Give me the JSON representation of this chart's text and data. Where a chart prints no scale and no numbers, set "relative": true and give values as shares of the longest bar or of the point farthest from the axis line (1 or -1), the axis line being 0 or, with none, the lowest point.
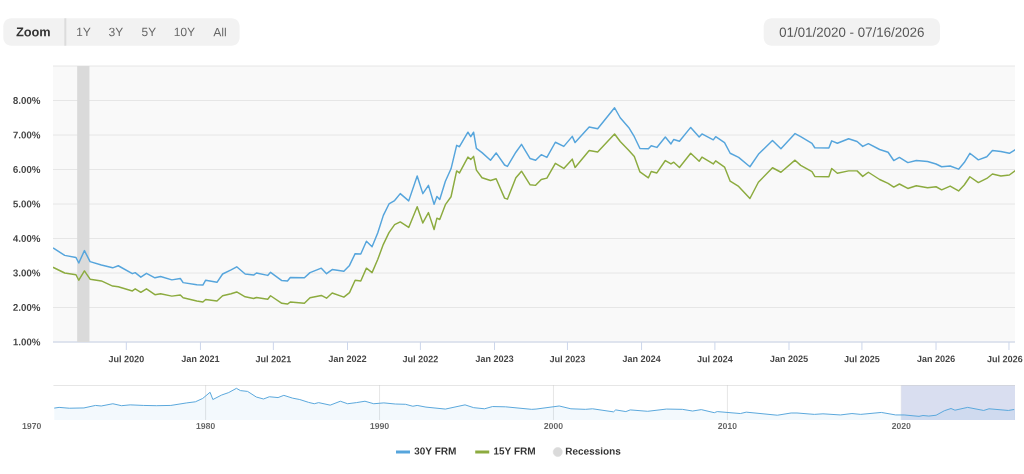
{
  "chart_data": [
    {
      "type": "line",
      "annotations": [
        "Zoom",
        "1Y",
        "3Y",
        "5Y",
        "10Y",
        "All",
        "01/01/2020 - 07/16/2026"
      ],
      "x": [
        "2020-01-02",
        "2020-01-30",
        "2020-02-27",
        "2020-03-05",
        "2020-03-19",
        "2020-04-02",
        "2020-04-30",
        "2020-05-28",
        "2020-06-11",
        "2020-07-16",
        "2020-07-23",
        "2020-08-06",
        "2020-08-20",
        "2020-09-10",
        "2020-09-24",
        "2020-10-22",
        "2020-11-12",
        "2020-11-19",
        "2020-12-23",
        "2021-01-07",
        "2021-01-14",
        "2021-02-11",
        "2021-02-25",
        "2021-03-18",
        "2021-04-01",
        "2021-04-22",
        "2021-05-13",
        "2021-05-20",
        "2021-06-17",
        "2021-06-24",
        "2021-07-22",
        "2021-08-05",
        "2021-08-12",
        "2021-09-16",
        "2021-09-30",
        "2021-10-28",
        "2021-11-10",
        "2021-11-24",
        "2021-12-23",
        "2022-01-06",
        "2022-01-20",
        "2022-02-03",
        "2022-02-17",
        "2022-03-03",
        "2022-03-17",
        "2022-03-31",
        "2022-04-14",
        "2022-04-28",
        "2022-05-12",
        "2022-06-02",
        "2022-06-23",
        "2022-07-07",
        "2022-07-21",
        "2022-08-04",
        "2022-08-11",
        "2022-08-18",
        "2022-09-01",
        "2022-09-15",
        "2022-09-29",
        "2022-10-06",
        "2022-10-27",
        "2022-11-03",
        "2022-11-10",
        "2022-11-17",
        "2022-12-01",
        "2022-12-22",
        "2023-01-05",
        "2023-01-26",
        "2023-02-02",
        "2023-02-23",
        "2023-03-09",
        "2023-03-30",
        "2023-04-13",
        "2023-04-27",
        "2023-05-11",
        "2023-06-01",
        "2023-06-22",
        "2023-07-13",
        "2023-07-20",
        "2023-08-24",
        "2023-09-14",
        "2023-10-26",
        "2023-11-09",
        "2023-11-30",
        "2023-12-14",
        "2023-12-28",
        "2024-01-18",
        "2024-01-25",
        "2024-02-08",
        "2024-02-29",
        "2024-03-14",
        "2024-03-21",
        "2024-04-04",
        "2024-05-02",
        "2024-05-23",
        "2024-05-30",
        "2024-06-27",
        "2024-07-03",
        "2024-07-25",
        "2024-08-08",
        "2024-08-29",
        "2024-09-26",
        "2024-10-17",
        "2024-11-21",
        "2024-12-12",
        "2025-01-16",
        "2025-01-30",
        "2025-02-27",
        "2025-03-06",
        "2025-04-10",
        "2025-04-17",
        "2025-05-01",
        "2025-05-29",
        "2025-06-19",
        "2025-07-03",
        "2025-07-17",
        "2025-08-14",
        "2025-09-04",
        "2025-09-18",
        "2025-10-02",
        "2025-10-23",
        "2025-11-13",
        "2025-12-11",
        "2026-01-01",
        "2026-01-15",
        "2026-02-05",
        "2026-02-26",
        "2026-03-12",
        "2026-03-26",
        "2026-04-16",
        "2026-05-07",
        "2026-05-21",
        "2026-06-11",
        "2026-07-02",
        "2026-07-16"
      ],
      "series": [
        {
          "name": "30Y FRM",
          "color": "#56a5dc",
          "values": [
            3.72,
            3.51,
            3.45,
            3.29,
            3.65,
            3.33,
            3.23,
            3.15,
            3.21,
            2.98,
            3.01,
            2.88,
            2.99,
            2.86,
            2.9,
            2.8,
            2.84,
            2.72,
            2.66,
            2.65,
            2.79,
            2.73,
            2.97,
            3.09,
            3.18,
            2.97,
            2.94,
            3.0,
            2.93,
            3.02,
            2.78,
            2.77,
            2.87,
            2.86,
            3.01,
            3.14,
            2.98,
            3.1,
            3.05,
            3.22,
            3.56,
            3.55,
            3.92,
            3.76,
            4.16,
            4.67,
            5.0,
            5.1,
            5.3,
            5.09,
            5.81,
            5.3,
            5.54,
            4.99,
            5.22,
            5.13,
            5.66,
            6.02,
            6.7,
            6.66,
            7.08,
            6.95,
            7.08,
            6.61,
            6.49,
            6.27,
            6.48,
            6.13,
            6.09,
            6.5,
            6.73,
            6.32,
            6.27,
            6.43,
            6.35,
            6.79,
            6.67,
            6.96,
            6.78,
            7.23,
            7.18,
            7.79,
            7.5,
            7.22,
            6.95,
            6.61,
            6.6,
            6.69,
            6.64,
            6.94,
            6.74,
            6.87,
            6.82,
            7.22,
            6.94,
            7.03,
            6.86,
            6.95,
            6.78,
            6.47,
            6.35,
            6.08,
            6.44,
            6.84,
            6.6,
            7.04,
            6.95,
            6.76,
            6.63,
            6.62,
            6.83,
            6.76,
            6.89,
            6.81,
            6.67,
            6.75,
            6.58,
            6.5,
            6.26,
            6.35,
            6.2,
            6.26,
            6.23,
            6.16,
            6.08,
            6.1,
            6.01,
            6.2,
            6.47,
            6.28,
            6.37,
            6.55,
            6.52,
            6.47,
            6.57
          ]
        },
        {
          "name": "15Y FRM",
          "color": "#8cab3f",
          "values": [
            3.16,
            3.0,
            2.95,
            2.79,
            3.06,
            2.82,
            2.77,
            2.62,
            2.6,
            2.48,
            2.54,
            2.44,
            2.54,
            2.37,
            2.4,
            2.33,
            2.36,
            2.28,
            2.19,
            2.16,
            2.23,
            2.19,
            2.34,
            2.4,
            2.45,
            2.31,
            2.26,
            2.29,
            2.24,
            2.34,
            2.12,
            2.1,
            2.16,
            2.12,
            2.28,
            2.35,
            2.27,
            2.42,
            2.3,
            2.43,
            2.79,
            2.77,
            3.14,
            3.01,
            3.39,
            3.83,
            4.17,
            4.4,
            4.48,
            4.32,
            4.92,
            4.45,
            4.75,
            4.26,
            4.59,
            4.55,
            4.98,
            5.21,
            5.96,
            5.9,
            6.36,
            6.29,
            6.38,
            5.98,
            5.76,
            5.68,
            5.73,
            5.17,
            5.14,
            5.76,
            5.95,
            5.56,
            5.54,
            5.71,
            5.75,
            6.18,
            6.03,
            6.3,
            6.06,
            6.55,
            6.51,
            7.03,
            6.81,
            6.56,
            6.38,
            5.93,
            5.76,
            5.94,
            5.9,
            6.26,
            6.16,
            6.21,
            6.06,
            6.47,
            6.24,
            6.36,
            6.16,
            6.25,
            6.07,
            5.66,
            5.51,
            5.16,
            5.63,
            6.05,
            5.92,
            6.27,
            6.12,
            5.94,
            5.8,
            5.79,
            6.03,
            5.89,
            5.96,
            5.96,
            5.8,
            5.92,
            5.71,
            5.6,
            5.49,
            5.58,
            5.45,
            5.53,
            5.47,
            5.5,
            5.41,
            5.52,
            5.38,
            5.55,
            5.79,
            5.62,
            5.74,
            5.87,
            5.81,
            5.84,
            5.96
          ]
        }
      ],
      "xlim": [
        "2020-01-01",
        "2026-07-16"
      ],
      "ylim": [
        1,
        9
      ],
      "xticks": [
        {
          "value": "2020-07-01",
          "label": "Jul 2020"
        },
        {
          "value": "2021-01-01",
          "label": "Jan 2021"
        },
        {
          "value": "2021-07-01",
          "label": "Jul 2021"
        },
        {
          "value": "2022-01-01",
          "label": "Jan 2022"
        },
        {
          "value": "2022-07-01",
          "label": "Jul 2022"
        },
        {
          "value": "2023-01-01",
          "label": "Jan 2023"
        },
        {
          "value": "2023-07-01",
          "label": "Jul 2023"
        },
        {
          "value": "2024-01-01",
          "label": "Jan 2024"
        },
        {
          "value": "2024-07-01",
          "label": "Jul 2024"
        },
        {
          "value": "2025-01-01",
          "label": "Jan 2025"
        },
        {
          "value": "2025-07-01",
          "label": "Jul 2025"
        },
        {
          "value": "2026-01-01",
          "label": "Jan 2026"
        },
        {
          "value": "2026-07-01",
          "label": "Jul 2026"
        }
      ],
      "yticks": [
        {
          "value": 1,
          "label": "1.00%"
        },
        {
          "value": 2,
          "label": "2.00%"
        },
        {
          "value": 3,
          "label": "3.00%"
        },
        {
          "value": 4,
          "label": "4.00%"
        },
        {
          "value": 5,
          "label": "5.00%"
        },
        {
          "value": 6,
          "label": "6.00%"
        },
        {
          "value": 7,
          "label": "7.00%"
        },
        {
          "value": 8,
          "label": "8.00%"
        },
        {
          "value": 9,
          "label": null
        }
      ],
      "grid": "y",
      "legend": "bottom",
      "bands": [
        {
          "axis": "x",
          "from": "2020-03-01",
          "to": "2020-04-01",
          "label": "Recessions",
          "color": "#dadada"
        }
      ]
    },
    {
      "type": "area",
      "relative": true,
      "x": [
        "1971-04-02",
        "1971-07-30",
        "1972-03-01",
        "1973-01-01",
        "1973-09-01",
        "1974-01-01",
        "1974-09-01",
        "1975-03-01",
        "1975-09-01",
        "1976-06-01",
        "1977-03-01",
        "1978-01-01",
        "1978-12-01",
        "1979-06-01",
        "1979-11-01",
        "1980-04-04",
        "1980-06-01",
        "1980-12-01",
        "1981-05-01",
        "1981-10-09",
        "1982-01-01",
        "1982-06-01",
        "1982-12-01",
        "1983-05-01",
        "1983-09-01",
        "1984-03-01",
        "1984-07-01",
        "1985-01-01",
        "1985-06-01",
        "1985-12-01",
        "1986-04-01",
        "1986-07-01",
        "1987-03-01",
        "1987-10-01",
        "1988-03-01",
        "1988-09-01",
        "1989-03-01",
        "1989-09-01",
        "1990-04-01",
        "1990-12-01",
        "1991-07-01",
        "1991-12-01",
        "1992-03-01",
        "1992-09-01",
        "1993-10-15",
        "1994-12-01",
        "1995-06-01",
        "1996-01-15",
        "1996-07-01",
        "1997-04-01",
        "1998-10-01",
        "1999-01-01",
        "2000-05-01",
        "2001-01-01",
        "2001-11-01",
        "2002-04-01",
        "2003-06-15",
        "2003-08-01",
        "2004-03-01",
        "2004-06-01",
        "2005-06-01",
        "2006-07-01",
        "2007-06-01",
        "2008-01-01",
        "2008-07-01",
        "2009-04-01",
        "2009-06-01",
        "2010-10-01",
        "2011-02-01",
        "2012-11-15",
        "2013-09-01",
        "2014-01-01",
        "2015-01-01",
        "2015-07-01",
        "2016-07-01",
        "2017-03-01",
        "2017-09-01",
        "2018-11-08",
        "2019-09-05",
        "2020-03-01",
        "2021-01-07",
        "2021-04-01",
        "2021-08-01",
        "2022-01-01",
        "2022-06-23",
        "2022-11-10",
        "2023-02-02",
        "2023-10-26",
        "2024-09-26",
        "2025-01-16",
        "2026-02-26",
        "2026-07-16"
      ],
      "series": [
        {
          "color": "#5aa8dc",
          "values": [
            0.29,
            0.32,
            0.29,
            0.3,
            0.39,
            0.37,
            0.45,
            0.38,
            0.41,
            0.39,
            0.38,
            0.39,
            0.48,
            0.52,
            0.64,
            0.86,
            0.6,
            0.76,
            0.85,
            1,
            0.92,
            0.89,
            0.69,
            0.62,
            0.7,
            0.67,
            0.75,
            0.65,
            0.6,
            0.5,
            0.45,
            0.49,
            0.4,
            0.54,
            0.45,
            0.49,
            0.54,
            0.45,
            0.48,
            0.44,
            0.43,
            0.36,
            0.39,
            0.33,
            0.26,
            0.41,
            0.31,
            0.27,
            0.35,
            0.34,
            0.25,
            0.26,
            0.37,
            0.27,
            0.25,
            0.27,
            0.16,
            0.23,
            0.17,
            0.23,
            0.18,
            0.26,
            0.25,
            0.19,
            0.24,
            0.13,
            0.17,
            0.1,
            0.15,
            0.04,
            0.12,
            0.12,
            0.07,
            0.09,
            0.05,
            0.1,
            0.07,
            0.14,
            0.05,
            0.05,
            0,
            0.03,
            0.01,
            0.04,
            0.2,
            0.28,
            0.22,
            0.32,
            0.21,
            0.27,
            0.21,
            0.25
          ]
        }
      ],
      "xlim": [
        "1970-01-01",
        "2026-07-16"
      ],
      "xticks": [
        {
          "value": "1970-01-01",
          "label": "1970"
        },
        {
          "value": "1980-01-01",
          "label": "1980"
        },
        {
          "value": "1990-01-01",
          "label": "1990"
        },
        {
          "value": "2000-01-01",
          "label": "2000"
        },
        {
          "value": "2010-01-01",
          "label": "2010"
        },
        {
          "value": "2020-01-01",
          "label": "2020"
        }
      ],
      "grid": "x",
      "tick_labels": "x",
      "bands": [
        {
          "axis": "x",
          "from": "2020-01-01",
          "to": "2026-07-16",
          "color": "#d9def0"
        }
      ]
    }
  ]
}
